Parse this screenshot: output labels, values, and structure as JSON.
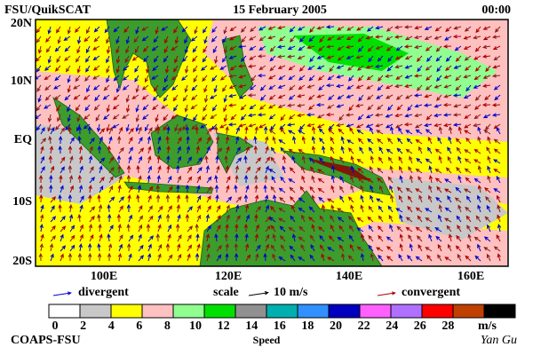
{
  "header": {
    "source": "FSU/QuikSCAT",
    "date": "15 February 2005",
    "time": "00:00"
  },
  "map": {
    "lat_labels": [
      "20N",
      "10N",
      "EQ",
      "10S",
      "20S"
    ],
    "lon_labels": [
      "100E",
      "120E",
      "140E",
      "160E"
    ]
  },
  "legend": {
    "divergent": "divergent",
    "scale_label": "scale",
    "scale_value": "10 m/s",
    "convergent": "convergent",
    "divergent_color": "#0000cc",
    "convergent_color": "#aa0000"
  },
  "colorbar": {
    "ticks": [
      "0",
      "2",
      "4",
      "6",
      "8",
      "10",
      "12",
      "14",
      "16",
      "18",
      "20",
      "22",
      "24",
      "26",
      "28"
    ],
    "unit": "m/s",
    "title": "Speed",
    "colors": [
      "#ffffff",
      "#c8c8c8",
      "#ffff00",
      "#ffc0c0",
      "#90ff90",
      "#00e000",
      "#909090",
      "#00b0b0",
      "#3090ff",
      "#0000c0",
      "#ff60ff",
      "#b070ff",
      "#ff0000",
      "#c04000",
      "#000000"
    ]
  },
  "footer": {
    "credit": "COAPS-FSU",
    "author": "Yan Gu"
  }
}
